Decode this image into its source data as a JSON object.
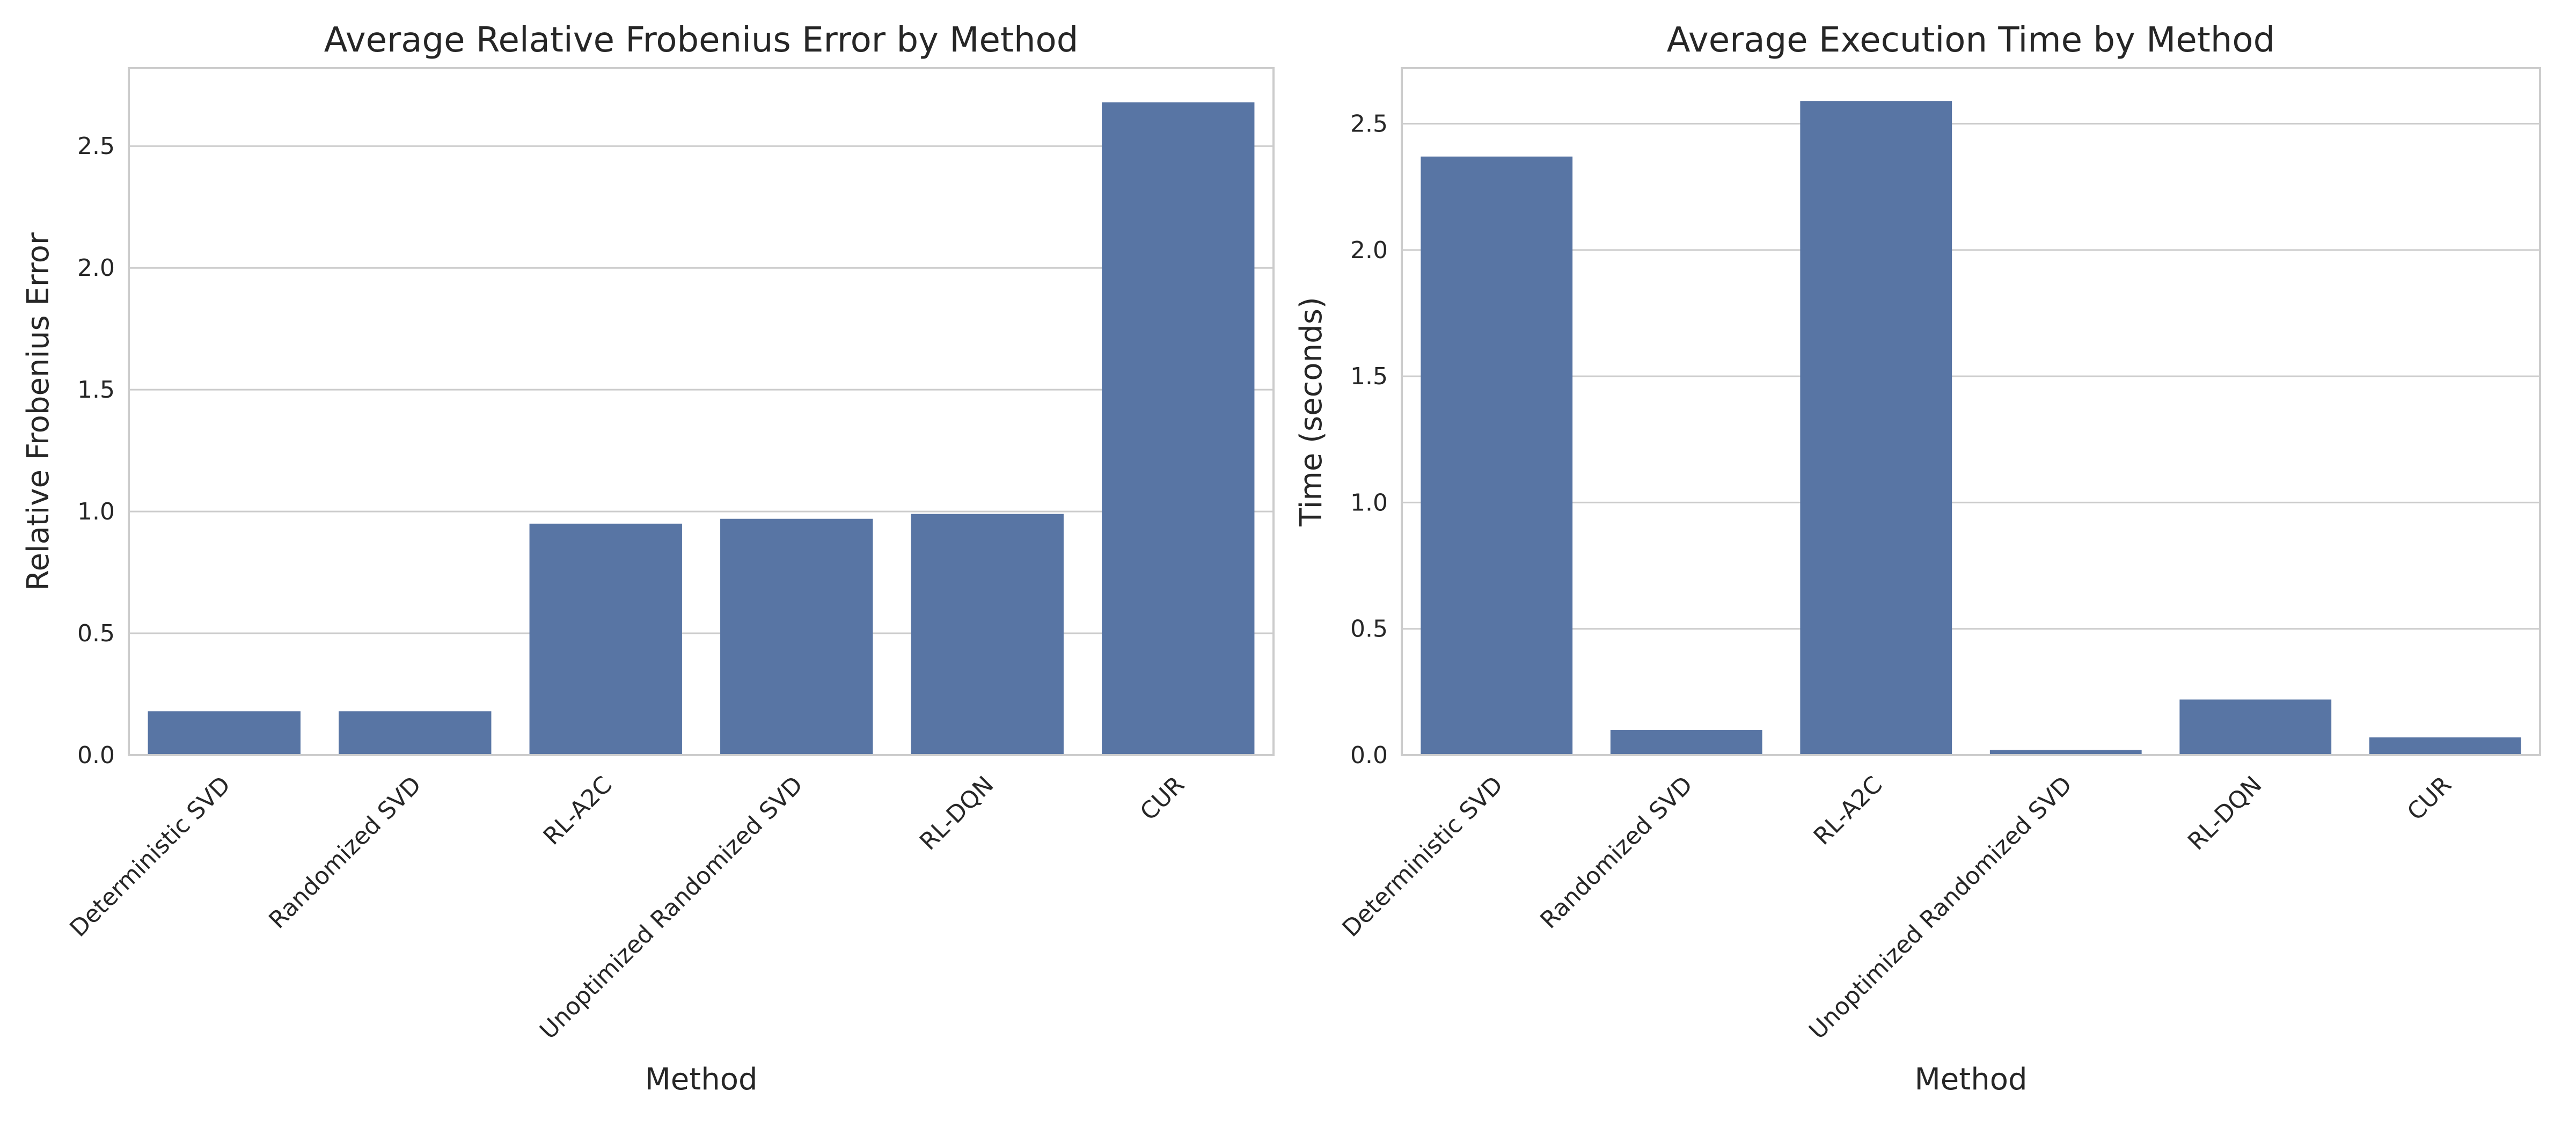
{
  "colors": {
    "bar": "#5875a4",
    "grid": "#cccccc",
    "frame": "#cccccc",
    "text": "#262626"
  },
  "chart_data": [
    {
      "type": "bar",
      "title": "Average Relative Frobenius Error by Method",
      "xlabel": "Method",
      "ylabel": "Relative Frobenius Error",
      "categories": [
        "Deterministic SVD",
        "Randomized SVD",
        "RL-A2C",
        "Unoptimized Randomized SVD",
        "RL-DQN",
        "CUR"
      ],
      "values": [
        0.18,
        0.18,
        0.95,
        0.97,
        0.99,
        2.68
      ],
      "ylim": [
        0,
        2.82
      ],
      "yticks": [
        0.0,
        0.5,
        1.0,
        1.5,
        2.0,
        2.5
      ],
      "ytick_labels": [
        "0.0",
        "0.5",
        "1.0",
        "1.5",
        "2.0",
        "2.5"
      ],
      "grid": "y",
      "legend": "none"
    },
    {
      "type": "bar",
      "title": "Average Execution Time by Method",
      "xlabel": "Method",
      "ylabel": "Time (seconds)",
      "categories": [
        "Deterministic SVD",
        "Randomized SVD",
        "RL-A2C",
        "Unoptimized Randomized SVD",
        "RL-DQN",
        "CUR"
      ],
      "values": [
        2.37,
        0.1,
        2.59,
        0.02,
        0.22,
        0.07
      ],
      "ylim": [
        0,
        2.72
      ],
      "yticks": [
        0.0,
        0.5,
        1.0,
        1.5,
        2.0,
        2.5
      ],
      "ytick_labels": [
        "0.0",
        "0.5",
        "1.0",
        "1.5",
        "2.0",
        "2.5"
      ],
      "grid": "y",
      "legend": "none"
    }
  ]
}
